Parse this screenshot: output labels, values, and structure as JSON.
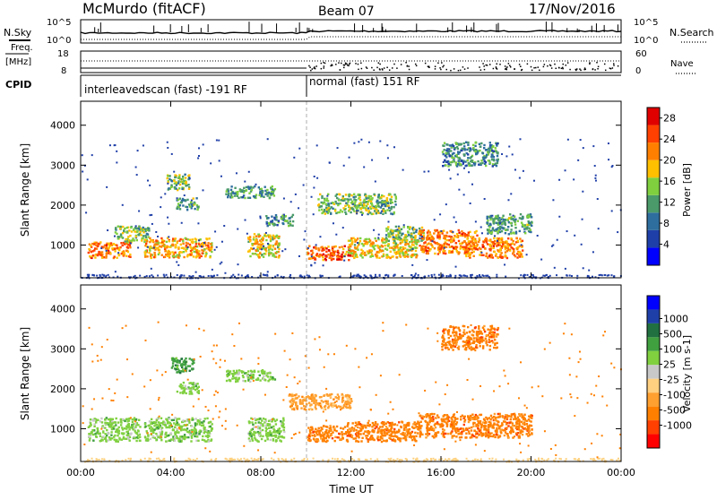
{
  "header": {
    "station": "McMurdo (fitACF)",
    "beam": "Beam 07",
    "date": "17/Nov/2016"
  },
  "top_panels": {
    "nsky_label": "N.Sky",
    "nsearch_label": "N.Search",
    "freq_label_line1": "Freq.",
    "freq_label_line2": "[MHz]",
    "nave_label": "Nave",
    "cpid_label": "CPID",
    "noise_ticks_left": [
      "10^5",
      "10^0"
    ],
    "noise_ticks_right": [
      "10^5",
      "10^0"
    ],
    "freq_ticks_left": [
      "18",
      "8"
    ],
    "nave_ticks_right": [
      "60",
      "0"
    ],
    "cpid_segments": [
      {
        "label": "interleavedscan (fast) -191 RF",
        "start_hour": 0,
        "end_hour": 10
      },
      {
        "label": "normal (fast) 151 RF",
        "start_hour": 10,
        "end_hour": 24
      }
    ]
  },
  "colors": {
    "power": [
      "#0000ff",
      "#1f3fa8",
      "#2e6e9e",
      "#4a9a6a",
      "#7fcf3f",
      "#ffc000",
      "#ff8000",
      "#ff4000",
      "#e00000"
    ],
    "velocity": [
      "#ff0000",
      "#ff4000",
      "#ff8000",
      "#ffa030",
      "#ffd080",
      "#c8c8c8",
      "#80d040",
      "#40a040",
      "#207040",
      "#1f3fa8",
      "#0000ff"
    ]
  },
  "chart_data": [
    {
      "type": "heatmap",
      "name": "power",
      "ylabel": "Slant Range [km]",
      "xlabel": "Time UT",
      "x_ticks": [
        "00:00",
        "04:00",
        "08:00",
        "12:00",
        "16:00",
        "20:00",
        "00:00"
      ],
      "y_ticks": [
        "1000",
        "2000",
        "3000",
        "4000"
      ],
      "xlim_hours": [
        0,
        24
      ],
      "ylim_km": [
        180,
        4600
      ],
      "colorbar_label": "Power [dB]",
      "colorbar_ticks": [
        "4",
        "8",
        "12",
        "16",
        "20",
        "24",
        "28"
      ],
      "colorbar_range": [
        0,
        30
      ],
      "blobs": [
        {
          "t0": 0.3,
          "t1": 2.2,
          "r0": 700,
          "r1": 1100,
          "level": 22
        },
        {
          "t0": 1.5,
          "t1": 3.0,
          "r0": 1100,
          "r1": 1500,
          "level": 14
        },
        {
          "t0": 2.8,
          "t1": 5.8,
          "r0": 700,
          "r1": 1200,
          "level": 20
        },
        {
          "t0": 3.8,
          "t1": 4.8,
          "r0": 2400,
          "r1": 2800,
          "level": 14
        },
        {
          "t0": 4.2,
          "t1": 5.2,
          "r0": 1900,
          "r1": 2200,
          "level": 12
        },
        {
          "t0": 6.4,
          "t1": 8.6,
          "r0": 2200,
          "r1": 2500,
          "level": 12
        },
        {
          "t0": 7.4,
          "t1": 8.8,
          "r0": 700,
          "r1": 1300,
          "level": 18
        },
        {
          "t0": 8.2,
          "t1": 9.4,
          "r0": 1500,
          "r1": 1800,
          "level": 10
        },
        {
          "t0": 10.0,
          "t1": 12.0,
          "r0": 650,
          "r1": 1000,
          "level": 24
        },
        {
          "t0": 10.5,
          "t1": 14.0,
          "r0": 1800,
          "r1": 2300,
          "level": 14
        },
        {
          "t0": 11.8,
          "t1": 15.0,
          "r0": 700,
          "r1": 1200,
          "level": 18
        },
        {
          "t0": 13.5,
          "t1": 15.2,
          "r0": 1100,
          "r1": 1500,
          "level": 14
        },
        {
          "t0": 15.0,
          "t1": 17.6,
          "r0": 800,
          "r1": 1400,
          "level": 22
        },
        {
          "t0": 17.0,
          "t1": 19.6,
          "r0": 700,
          "r1": 1200,
          "level": 22
        },
        {
          "t0": 18.0,
          "t1": 20.0,
          "r0": 1300,
          "r1": 1800,
          "level": 12
        },
        {
          "t0": 16.0,
          "t1": 18.5,
          "r0": 3000,
          "r1": 3600,
          "level": 10
        }
      ]
    },
    {
      "type": "heatmap",
      "name": "velocity",
      "ylabel": "Slant Range [km]",
      "xlabel": "Time UT",
      "x_ticks": [
        "00:00",
        "04:00",
        "08:00",
        "12:00",
        "16:00",
        "20:00",
        "00:00"
      ],
      "y_ticks": [
        "1000",
        "2000",
        "3000",
        "4000"
      ],
      "xlim_hours": [
        0,
        24
      ],
      "ylim_km": [
        180,
        4600
      ],
      "colorbar_label": "Velocity [m s-1]",
      "colorbar_ticks": [
        "1000",
        "500",
        "100",
        "25",
        "-25",
        "-100",
        "-500",
        "-1000"
      ],
      "blobs": [
        {
          "t0": 0.3,
          "t1": 2.6,
          "r0": 700,
          "r1": 1300,
          "class": 6
        },
        {
          "t0": 2.8,
          "t1": 5.8,
          "r0": 700,
          "r1": 1300,
          "class": 6
        },
        {
          "t0": 4.0,
          "t1": 5.0,
          "r0": 2400,
          "r1": 2800,
          "class": 7
        },
        {
          "t0": 4.2,
          "t1": 5.2,
          "r0": 1900,
          "r1": 2200,
          "class": 6
        },
        {
          "t0": 6.4,
          "t1": 8.6,
          "r0": 2200,
          "r1": 2500,
          "class": 6
        },
        {
          "t0": 7.4,
          "t1": 9.0,
          "r0": 700,
          "r1": 1300,
          "class": 6
        },
        {
          "t0": 9.2,
          "t1": 12.0,
          "r0": 1500,
          "r1": 1900,
          "class": 3
        },
        {
          "t0": 10.0,
          "t1": 12.0,
          "r0": 700,
          "r1": 1100,
          "class": 2
        },
        {
          "t0": 11.8,
          "t1": 15.0,
          "r0": 700,
          "r1": 1200,
          "class": 2
        },
        {
          "t0": 15.0,
          "t1": 20.0,
          "r0": 800,
          "r1": 1400,
          "class": 2
        },
        {
          "t0": 16.0,
          "t1": 18.5,
          "r0": 3000,
          "r1": 3600,
          "class": 2
        }
      ]
    }
  ]
}
